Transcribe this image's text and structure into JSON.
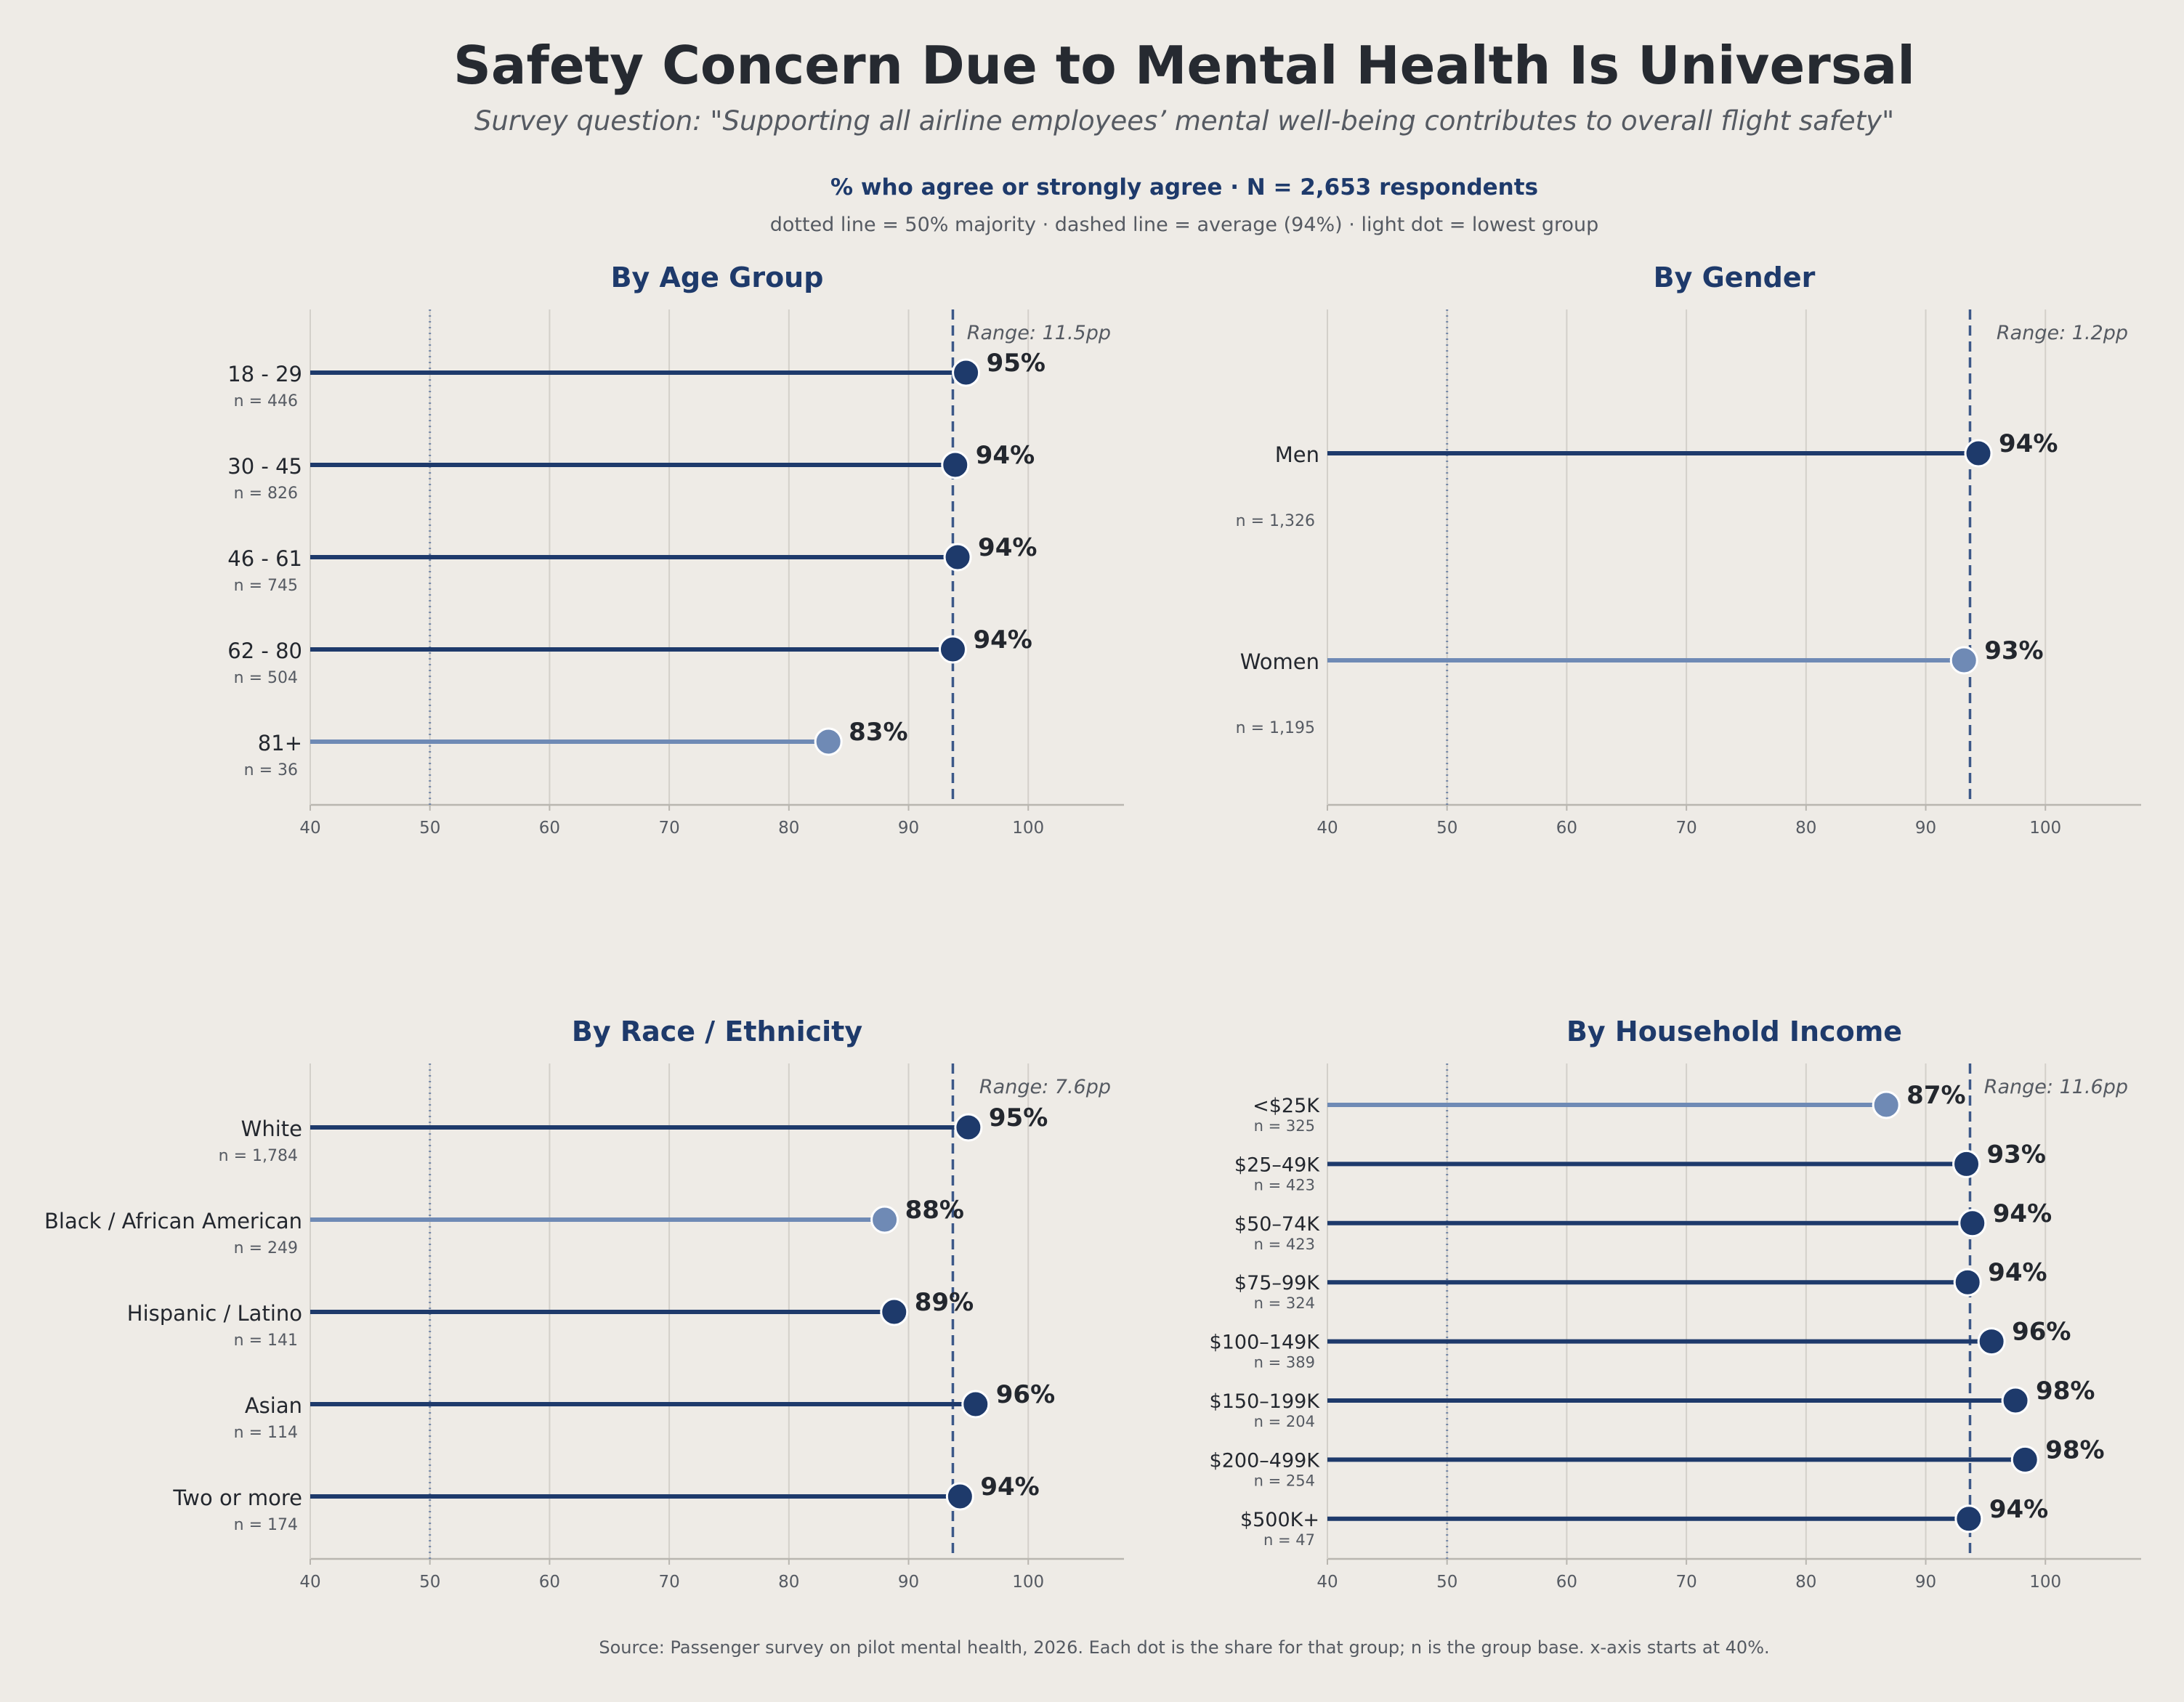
{
  "header": {
    "title": "Safety Concern Due to Mental Health Is Universal",
    "subtitle": "Survey question:  \"Supporting all airline employees’ mental well-being contributes to overall flight safety\"",
    "metric": "% who agree or strongly agree   ·   N = 2,653 respondents",
    "legend_note": "dotted line = 50% majority   ·   dashed line = average (94%)   ·   light dot = lowest group"
  },
  "footer": {
    "source": "Source: Passenger survey on pilot mental health, 2026.  Each dot is the share for that group; n is the group base.  x-axis starts at 40%."
  },
  "colors": {
    "dark": "#1e3a6b",
    "light": "#6f8ab5",
    "grid": "#d3d0ca",
    "axis": "#b9b6b0",
    "text": "#23272e",
    "muted": "#555a62"
  },
  "chart_data": [
    {
      "type": "lollipop",
      "title": "By Age Group",
      "range_label": "Range: 11.5pp",
      "xlim": [
        40,
        108
      ],
      "xticks": [
        "40",
        "50",
        "60",
        "70",
        "80",
        "90",
        "100"
      ],
      "majority_line": 50,
      "average_line": 93.7,
      "categories": [
        "18 - 29",
        "30 - 45",
        "46 - 61",
        "62 - 80",
        "81+"
      ],
      "n_labels": [
        "n = 446",
        "n = 826",
        "n = 745",
        "n = 504",
        "n = 36"
      ],
      "values": [
        94.8,
        93.9,
        94.1,
        93.7,
        83.3
      ],
      "value_labels": [
        "95%",
        "94%",
        "94%",
        "94%",
        "83%"
      ],
      "lowest_index": 4
    },
    {
      "type": "lollipop",
      "title": "By Gender",
      "range_label": "Range: 1.2pp",
      "xlim": [
        40,
        108
      ],
      "xticks": [
        "40",
        "50",
        "60",
        "70",
        "80",
        "90",
        "100"
      ],
      "majority_line": 50,
      "average_line": 93.7,
      "categories": [
        "Men",
        "Women"
      ],
      "n_labels": [
        "n = 1,326",
        "n = 1,195"
      ],
      "values": [
        94.4,
        93.2
      ],
      "value_labels": [
        "94%",
        "93%"
      ],
      "lowest_index": 1
    },
    {
      "type": "lollipop",
      "title": "By Race / Ethnicity",
      "range_label": "Range: 7.6pp",
      "xlim": [
        40,
        108
      ],
      "xticks": [
        "40",
        "50",
        "60",
        "70",
        "80",
        "90",
        "100"
      ],
      "majority_line": 50,
      "average_line": 93.7,
      "categories": [
        "White",
        "Black / African American",
        "Hispanic / Latino",
        "Asian",
        "Two or more"
      ],
      "n_labels": [
        "n = 1,784",
        "n = 249",
        "n = 141",
        "n = 114",
        "n = 174"
      ],
      "values": [
        95.0,
        88.0,
        88.8,
        95.6,
        94.3
      ],
      "value_labels": [
        "95%",
        "88%",
        "89%",
        "96%",
        "94%"
      ],
      "lowest_index": 1
    },
    {
      "type": "lollipop",
      "title": "By Household Income",
      "range_label": "Range: 11.6pp",
      "xlim": [
        40,
        108
      ],
      "xticks": [
        "40",
        "50",
        "60",
        "70",
        "80",
        "90",
        "100"
      ],
      "majority_line": 50,
      "average_line": 93.7,
      "categories": [
        "<$25K",
        "$25–49K",
        "$50–74K",
        "$75–99K",
        "$100–149K",
        "$150–199K",
        "$200–499K",
        "$500K+"
      ],
      "n_labels": [
        "n = 325",
        "n = 423",
        "n = 423",
        "n = 324",
        "n = 389",
        "n = 204",
        "n = 254",
        "n = 47"
      ],
      "values": [
        86.7,
        93.4,
        93.9,
        93.5,
        95.5,
        97.5,
        98.3,
        93.6
      ],
      "value_labels": [
        "87%",
        "93%",
        "94%",
        "94%",
        "96%",
        "98%",
        "98%",
        "94%"
      ],
      "lowest_index": 0
    }
  ]
}
